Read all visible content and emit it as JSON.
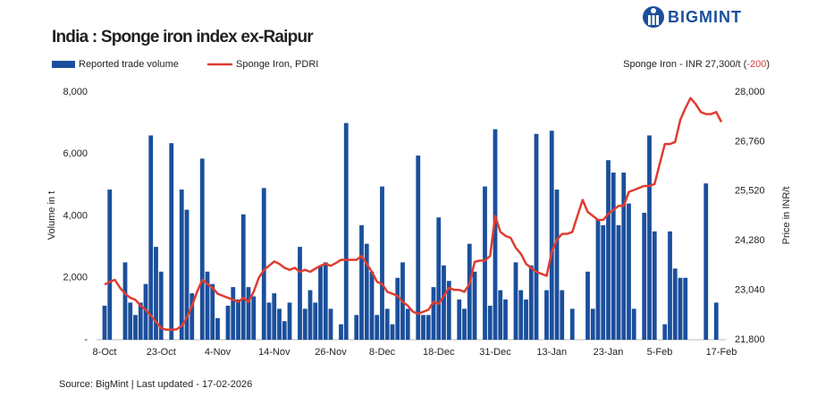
{
  "logo": "BIGMINT",
  "source": "Source: BigMint | Last updated - 17-02-2026",
  "chart_data": {
    "type": "bar-line",
    "title": "India : Sponge iron index ex-Raipur",
    "annotation": {
      "prefix": "Sponge Iron - INR 27,300/t (",
      "change": "-200",
      "suffix": ")",
      "change_color": "#e03c31"
    },
    "y_label": "Volume in t",
    "y2_label": "Price in INR/t",
    "ylim": [
      0,
      8000
    ],
    "yticks": [
      {
        "value": 0,
        "label": "-"
      },
      {
        "value": 2000,
        "label": "2,000"
      },
      {
        "value": 4000,
        "label": "4,000"
      },
      {
        "value": 6000,
        "label": "6,000"
      },
      {
        "value": 8000,
        "label": "8,000"
      }
    ],
    "y2lim": [
      21800,
      28000
    ],
    "y2ticks": [
      {
        "value": 21800,
        "label": "21,800"
      },
      {
        "value": 23040,
        "label": "23,040"
      },
      {
        "value": 24280,
        "label": "24,280"
      },
      {
        "value": 25520,
        "label": "25,520"
      },
      {
        "value": 26760,
        "label": "26,760"
      },
      {
        "value": 28000,
        "label": "28,000"
      }
    ],
    "categories": [
      "8-Oct",
      null,
      null,
      null,
      null,
      null,
      null,
      null,
      null,
      null,
      null,
      "23-Oct",
      null,
      null,
      null,
      null,
      null,
      null,
      null,
      null,
      null,
      null,
      "4-Nov",
      null,
      null,
      null,
      null,
      null,
      null,
      null,
      null,
      null,
      null,
      "14-Nov",
      null,
      null,
      null,
      null,
      null,
      null,
      null,
      null,
      null,
      null,
      "26-Nov",
      null,
      null,
      null,
      null,
      null,
      null,
      null,
      null,
      null,
      "8-Dec",
      null,
      null,
      null,
      null,
      null,
      null,
      null,
      null,
      null,
      null,
      "18-Dec",
      null,
      null,
      null,
      null,
      null,
      null,
      null,
      null,
      null,
      null,
      "31-Dec",
      null,
      null,
      null,
      null,
      null,
      null,
      null,
      null,
      null,
      null,
      "13-Jan",
      null,
      null,
      null,
      null,
      null,
      null,
      null,
      null,
      null,
      null,
      "23-Jan",
      null,
      null,
      null,
      null,
      null,
      null,
      null,
      null,
      null,
      "5-Feb",
      null,
      null,
      null,
      null,
      null,
      null,
      null,
      null,
      null,
      null,
      null,
      "17-Feb"
    ],
    "series": [
      {
        "name": "Reported trade volume",
        "type": "bar",
        "color": "#1b4f9c",
        "values": [
          1100,
          4850,
          null,
          null,
          2500,
          1200,
          800,
          1200,
          1800,
          6600,
          3000,
          2200,
          null,
          6350,
          null,
          4850,
          4200,
          1500,
          null,
          5850,
          2200,
          1800,
          700,
          null,
          1100,
          1700,
          1300,
          4050,
          1700,
          1400,
          null,
          4900,
          1200,
          1500,
          1000,
          600,
          1200,
          null,
          3000,
          1000,
          1600,
          1200,
          2400,
          2500,
          1000,
          null,
          500,
          7000,
          null,
          800,
          3700,
          3100,
          2200,
          800,
          4950,
          1000,
          500,
          2000,
          2500,
          1000,
          null,
          5950,
          800,
          800,
          1700,
          3950,
          2400,
          1900,
          null,
          1300,
          1000,
          3100,
          2200,
          null,
          4950,
          1100,
          6800,
          1600,
          1300,
          null,
          2500,
          1600,
          1300,
          2400,
          6650,
          null,
          1600,
          6750,
          4850,
          1600,
          null,
          1000,
          null,
          null,
          2200,
          1000,
          3900,
          3700,
          5800,
          5400,
          3700,
          5400,
          4400,
          1000,
          null,
          4100,
          6600,
          3500,
          null,
          500,
          3500,
          2300,
          2000,
          2000,
          null,
          null,
          null,
          5050,
          null,
          1200,
          null
        ]
      },
      {
        "name": "Sponge Iron, PDRI",
        "type": "line",
        "axis": "y2",
        "color": "#e03c31",
        "values": [
          23180,
          23250,
          23300,
          23100,
          22950,
          22850,
          22800,
          22650,
          22550,
          22400,
          22250,
          22090,
          22050,
          22050,
          22060,
          22150,
          22350,
          22650,
          23000,
          23300,
          23200,
          23100,
          22950,
          22900,
          22850,
          22800,
          22750,
          22850,
          22750,
          23000,
          23350,
          23550,
          23650,
          23760,
          23700,
          23600,
          23550,
          23600,
          23500,
          23550,
          23500,
          23580,
          23650,
          23700,
          23650,
          23720,
          23800,
          23800,
          23800,
          23800,
          23900,
          23700,
          23500,
          23250,
          23200,
          23000,
          22950,
          22900,
          22750,
          22650,
          22500,
          22450,
          22500,
          22550,
          22750,
          22700,
          22900,
          23100,
          23050,
          23050,
          23000,
          23200,
          23750,
          23780,
          23780,
          23900,
          24900,
          24500,
          24400,
          24350,
          24100,
          23950,
          23700,
          23600,
          23500,
          23450,
          23400,
          24000,
          24300,
          24450,
          24450,
          24500,
          24900,
          25300,
          25000,
          24900,
          24800,
          24800,
          24950,
          25050,
          25150,
          25150,
          25500,
          25550,
          25600,
          25650,
          25650,
          25700,
          26200,
          26700,
          26700,
          26750,
          27300,
          27600,
          27850,
          27700,
          27500,
          27450,
          27450,
          27500,
          27250
        ]
      }
    ]
  }
}
